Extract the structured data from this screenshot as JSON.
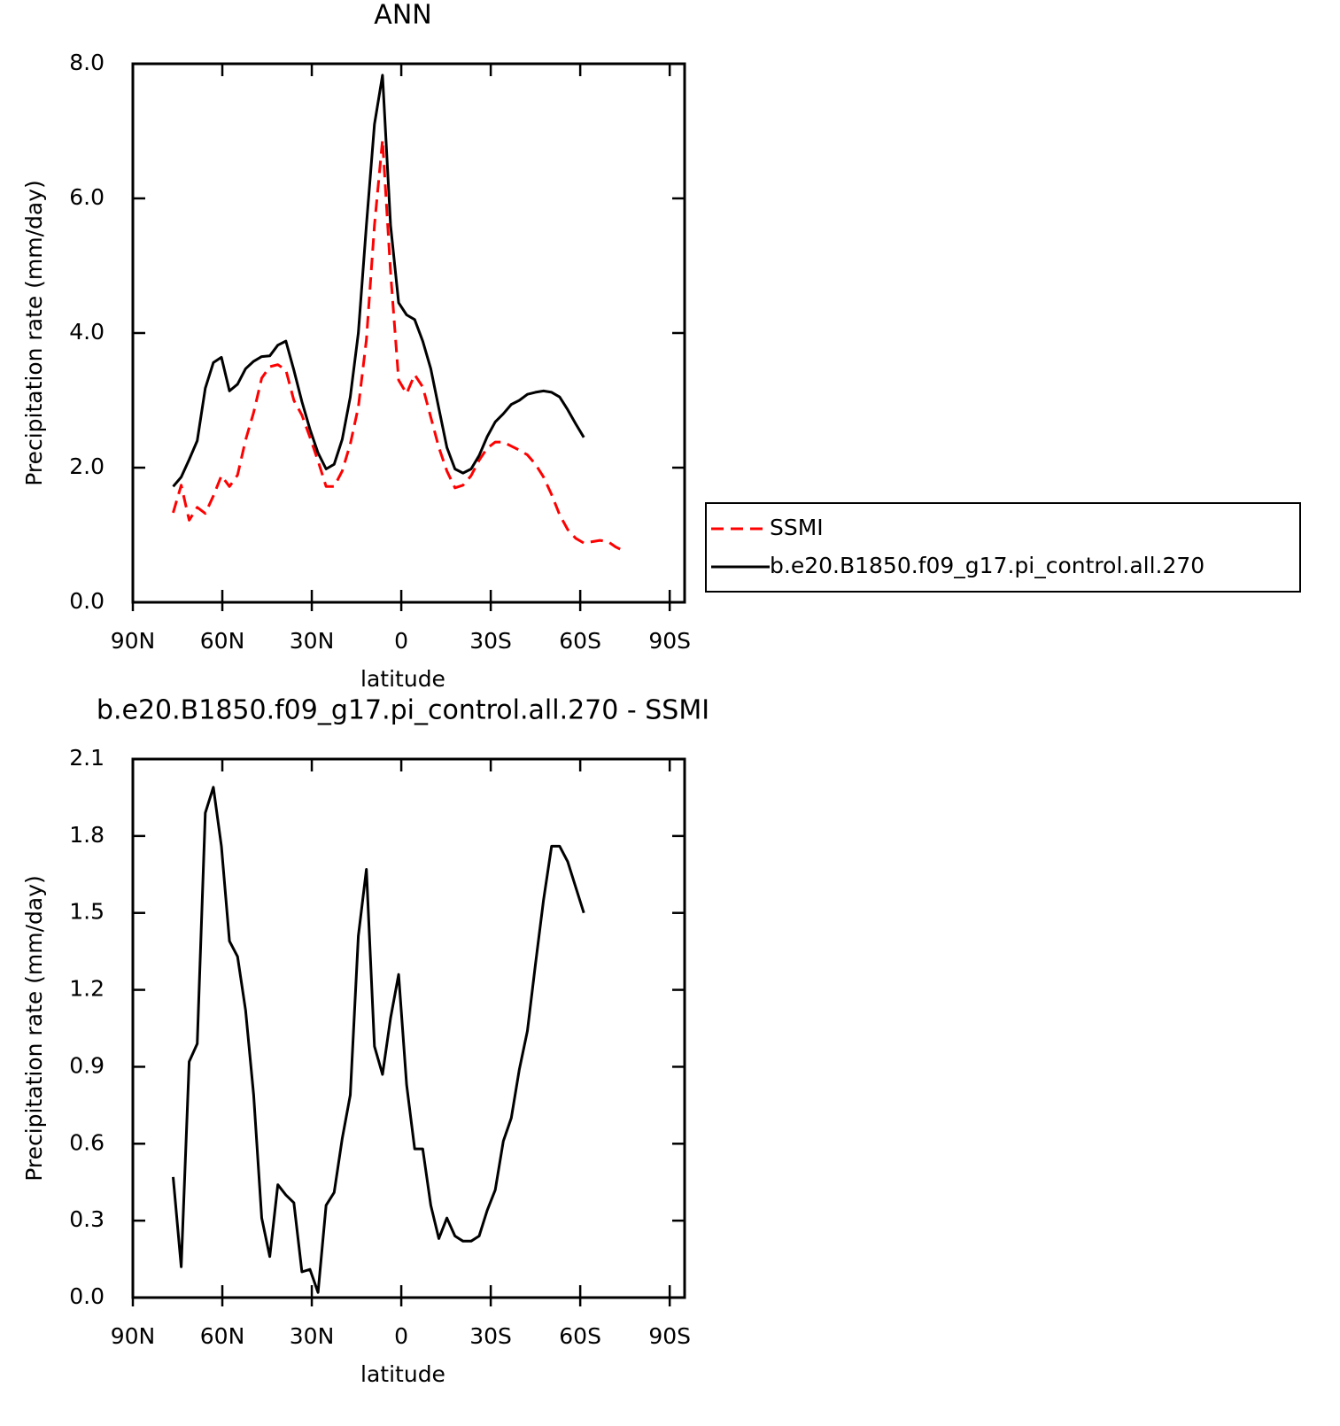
{
  "chart_data": [
    {
      "type": "line",
      "title": "ANN",
      "x_label": "latitude",
      "y_label": "Precipitation rate (mm/day)",
      "x": [
        76.5,
        73.8,
        71.1,
        68.4,
        65.7,
        63,
        60.3,
        57.6,
        54.9,
        52.2,
        49.5,
        46.8,
        44.1,
        41.4,
        38.7,
        36,
        33.3,
        30.6,
        27.9,
        25.2,
        22.5,
        19.8,
        17.1,
        14.4,
        11.7,
        9,
        6.3,
        3.6,
        0.9,
        -1.8,
        -4.5,
        -7.2,
        -9.9,
        -12.6,
        -15.3,
        -18,
        -20.7,
        -23.4,
        -26.1,
        -28.8,
        -31.5,
        -34.2,
        -36.9,
        -39.6,
        -42.3,
        -45,
        -47.7,
        -50.4,
        -53.1,
        -55.8,
        -58.5,
        -61.2,
        -63.9,
        -66.6,
        -69.3,
        -72,
        -74.7
      ],
      "series": [
        {
          "name": "SSMI",
          "color": "#ff0000",
          "line_style": "dashed",
          "values": [
            1.33,
            1.74,
            1.22,
            1.41,
            1.32,
            1.58,
            1.88,
            1.72,
            1.89,
            2.41,
            2.82,
            3.33,
            3.5,
            3.53,
            3.45,
            3.0,
            2.78,
            2.45,
            2.1,
            1.72,
            1.72,
            1.95,
            2.35,
            2.9,
            3.9,
            5.6,
            6.87,
            4.9,
            3.3,
            3.1,
            3.38,
            3.2,
            2.75,
            2.3,
            1.95,
            1.7,
            1.74,
            1.88,
            2.11,
            2.29,
            2.38,
            2.38,
            2.32,
            2.26,
            2.19,
            2.05,
            1.86,
            1.6,
            1.3,
            1.08,
            0.95,
            0.88,
            0.9,
            0.92,
            0.9,
            0.82,
            0.76
          ]
        },
        {
          "name": "b.e20.B1850.f09_g17.pi_control.all.270",
          "color": "#000000",
          "line_style": "solid",
          "values": [
            1.72,
            1.86,
            2.12,
            2.4,
            3.18,
            3.56,
            3.64,
            3.14,
            3.24,
            3.47,
            3.58,
            3.65,
            3.66,
            3.82,
            3.88,
            3.45,
            2.98,
            2.57,
            2.22,
            1.98,
            2.05,
            2.42,
            3.05,
            4.0,
            5.6,
            7.1,
            7.83,
            5.6,
            4.45,
            4.27,
            4.2,
            3.88,
            3.47,
            2.88,
            2.3,
            1.98,
            1.92,
            1.98,
            2.18,
            2.46,
            2.68,
            2.8,
            2.94,
            3.0,
            3.09,
            3.12,
            3.14,
            3.12,
            3.05,
            2.86,
            2.65,
            2.45,
            null,
            null,
            null,
            null,
            null
          ]
        }
      ],
      "xlim": [
        90,
        -95
      ],
      "xticks": [
        {
          "value": 90,
          "label": "90N"
        },
        {
          "value": 60,
          "label": "60N"
        },
        {
          "value": 30,
          "label": "30N"
        },
        0,
        {
          "value": -30,
          "label": "30S"
        },
        {
          "value": -60,
          "label": "60S"
        },
        {
          "value": -90,
          "label": "90S"
        }
      ],
      "ylim": [
        0,
        8
      ],
      "yticks": [
        {
          "value": 0,
          "label": "0.0"
        },
        {
          "value": 2,
          "label": "2.0"
        },
        {
          "value": 4,
          "label": "4.0"
        },
        {
          "value": 6,
          "label": "6.0"
        },
        {
          "value": 8,
          "label": "8.0"
        }
      ],
      "legend": "outside-right"
    },
    {
      "type": "line",
      "title": "b.e20.B1850.f09_g17.pi_control.all.270 - SSMI",
      "x_label": "latitude",
      "y_label": "Precipitation rate (mm/day)",
      "x": [
        76.5,
        73.8,
        71.1,
        68.4,
        65.7,
        63,
        60.3,
        57.6,
        54.9,
        52.2,
        49.5,
        46.8,
        44.1,
        41.4,
        38.7,
        36,
        33.3,
        30.6,
        27.9,
        25.2,
        22.5,
        19.8,
        17.1,
        14.4,
        11.7,
        9,
        6.3,
        3.6,
        0.9,
        -1.8,
        -4.5,
        -7.2,
        -9.9,
        -12.6,
        -15.3,
        -18,
        -20.7,
        -23.4,
        -26.1,
        -28.8,
        -31.5,
        -34.2,
        -36.9,
        -39.6,
        -42.3,
        -45,
        -47.7,
        -50.4,
        -53.1,
        -55.8,
        -58.5,
        -61.2,
        -63.9,
        -66.6,
        -69.3,
        -72,
        -74.7
      ],
      "series": [
        {
          "color": "#000000",
          "line_style": "solid",
          "values": [
            0.47,
            0.12,
            0.92,
            0.99,
            1.89,
            1.99,
            1.76,
            1.39,
            1.33,
            1.12,
            0.79,
            0.31,
            0.16,
            0.44,
            0.4,
            0.37,
            0.1,
            0.11,
            0.02,
            0.36,
            0.41,
            0.62,
            0.79,
            1.41,
            1.67,
            0.98,
            0.87,
            1.09,
            1.26,
            0.83,
            0.58,
            0.58,
            0.36,
            0.23,
            0.31,
            0.24,
            0.22,
            0.22,
            0.24,
            0.34,
            0.42,
            0.61,
            0.7,
            0.89,
            1.04,
            1.3,
            1.55,
            1.76,
            1.76,
            1.7,
            1.6,
            1.5,
            null,
            null,
            null,
            null,
            null
          ]
        }
      ],
      "xlim": [
        90,
        -95
      ],
      "xticks": [
        {
          "value": 90,
          "label": "90N"
        },
        {
          "value": 60,
          "label": "60N"
        },
        {
          "value": 30,
          "label": "30N"
        },
        0,
        {
          "value": -30,
          "label": "30S"
        },
        {
          "value": -60,
          "label": "60S"
        },
        {
          "value": -90,
          "label": "90S"
        }
      ],
      "ylim": [
        0,
        2.1
      ],
      "yticks": [
        {
          "value": 0,
          "label": "0.0"
        },
        {
          "value": 0.3,
          "label": "0.3"
        },
        {
          "value": 0.6,
          "label": "0.6"
        },
        {
          "value": 0.9,
          "label": "0.9"
        },
        {
          "value": 1.2,
          "label": "1.2"
        },
        {
          "value": 1.5,
          "label": "1.5"
        },
        {
          "value": 1.8,
          "label": "1.8"
        },
        {
          "value": 2.1,
          "label": "2.1"
        }
      ]
    }
  ]
}
